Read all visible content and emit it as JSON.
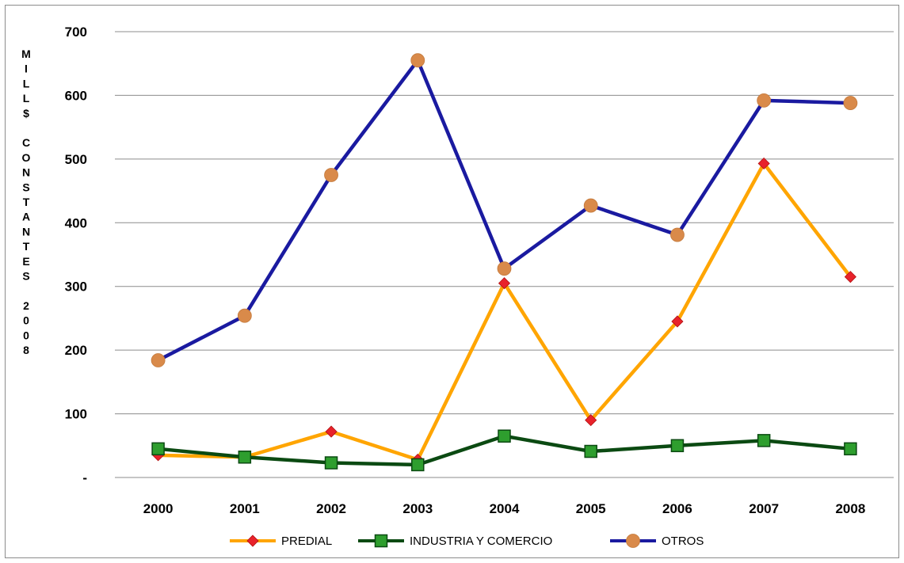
{
  "chart_data": {
    "type": "line",
    "title": "",
    "ylabel": "MILL$ CONSTANTES 2008",
    "ylabel_lines": [
      "M",
      "I",
      "L",
      "L",
      "$",
      "",
      "C",
      "O",
      "N",
      "S",
      "T",
      "A",
      "N",
      "T",
      "E",
      "S",
      "",
      "2",
      "0",
      "0",
      "8"
    ],
    "categories": [
      "2000",
      "2001",
      "2002",
      "2003",
      "2004",
      "2005",
      "2006",
      "2007",
      "2008"
    ],
    "ylim": [
      0,
      700
    ],
    "yticks": [
      0,
      100,
      200,
      300,
      400,
      500,
      600,
      700
    ],
    "ytick_labels": [
      "-",
      "100",
      "200",
      "300",
      "400",
      "500",
      "600",
      "700"
    ],
    "grid": true,
    "legend_position": "bottom",
    "series": [
      {
        "name": "PREDIAL",
        "color": "#FFA500",
        "marker": "diamond",
        "marker_color": "#E8222B",
        "values": [
          35,
          32,
          72,
          28,
          305,
          90,
          245,
          493,
          315
        ]
      },
      {
        "name": "INDUSTRIA Y COMERCIO",
        "color": "#0B4A12",
        "marker": "square",
        "marker_color": "#2E9E2E",
        "values": [
          45,
          32,
          23,
          20,
          65,
          41,
          50,
          58,
          45
        ]
      },
      {
        "name": "OTROS",
        "color": "#1A1AA0",
        "marker": "circle",
        "marker_color": "#D98A4A",
        "values": [
          184,
          254,
          475,
          655,
          328,
          427,
          381,
          592,
          588
        ]
      }
    ]
  }
}
